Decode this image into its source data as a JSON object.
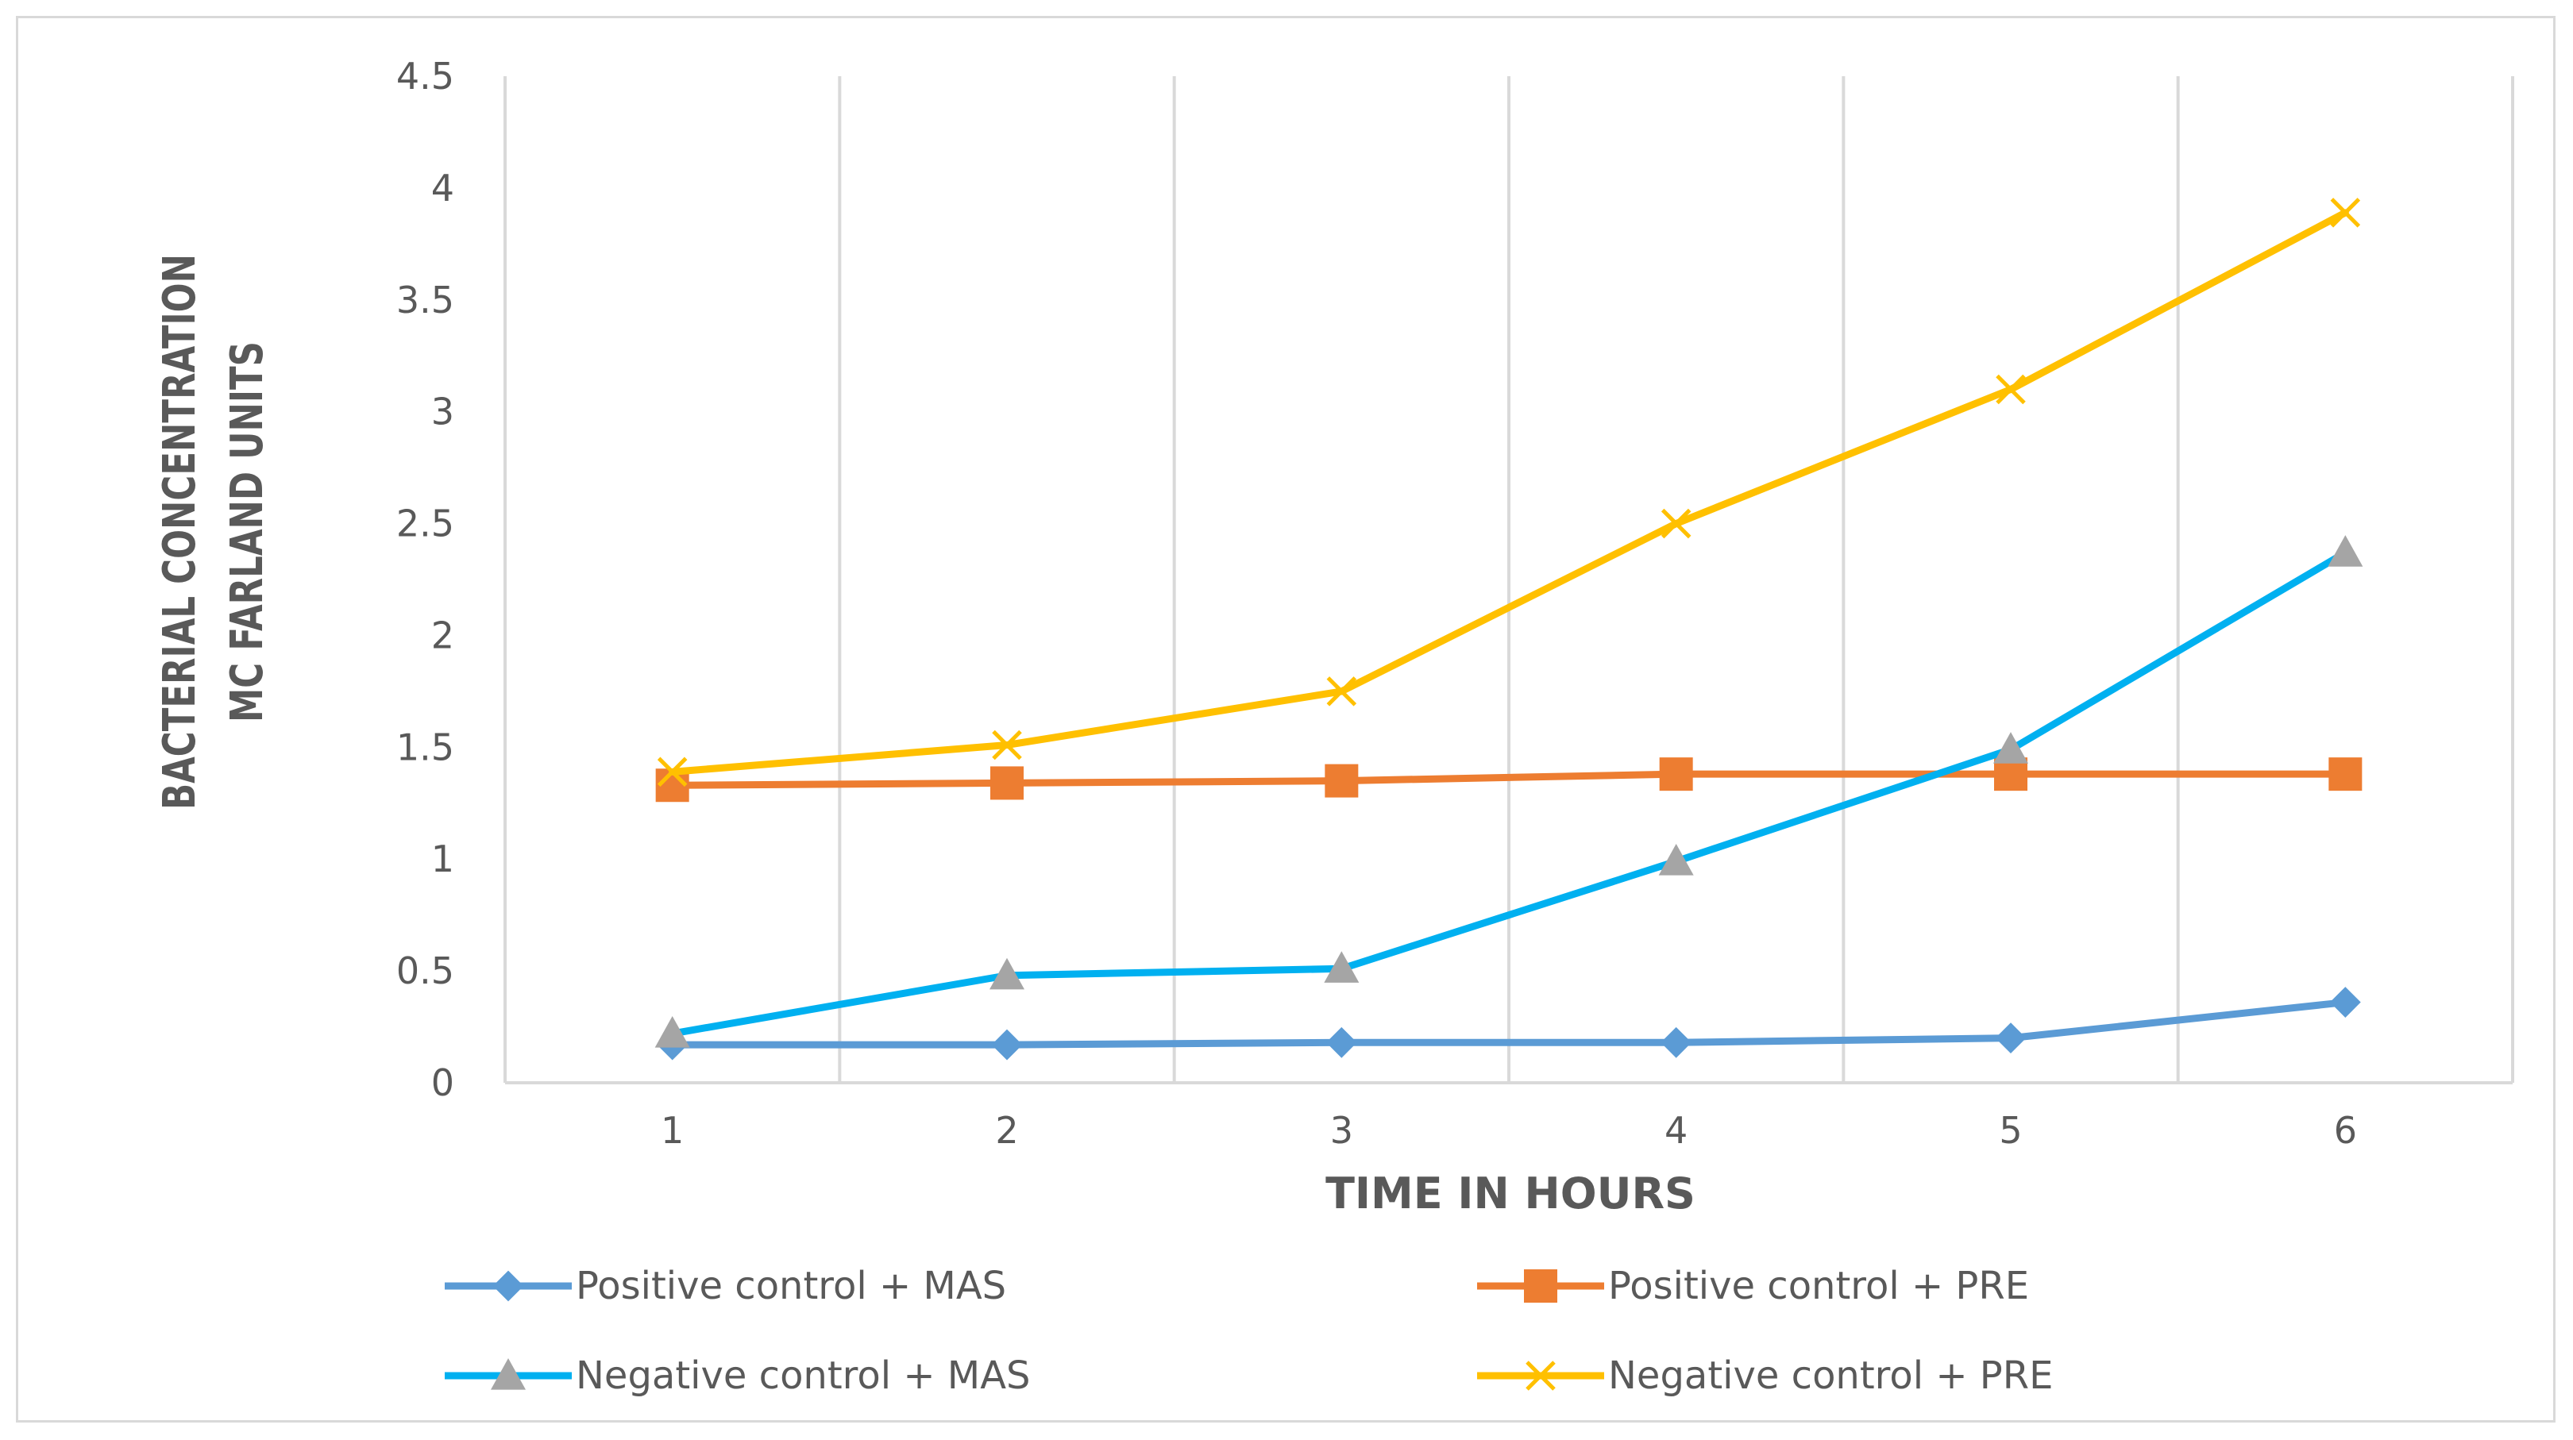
{
  "chart_data": {
    "type": "line",
    "title": "",
    "xlabel": "TIME IN HOURS",
    "ylabel_lines": [
      "BACTERIAL CONCENTRATION",
      "MC FARLAND UNITS"
    ],
    "categories": [
      "1",
      "2",
      "3",
      "4",
      "5",
      "6"
    ],
    "ylim": [
      0,
      4.5
    ],
    "yticks": [
      "0",
      "0.5",
      "1",
      "1.5",
      "2",
      "2.5",
      "3",
      "3.5",
      "4",
      "4.5"
    ],
    "grid": "vertical",
    "legend_position": "bottom",
    "series": [
      {
        "name": "Positive control + MAS",
        "color": "#5b9bd5",
        "marker": "diamond",
        "values": [
          0.17,
          0.17,
          0.18,
          0.18,
          0.2,
          0.36
        ]
      },
      {
        "name": "Positive control + PRE",
        "color": "#ed7d31",
        "marker": "square",
        "values": [
          1.33,
          1.34,
          1.35,
          1.38,
          1.38,
          1.38
        ]
      },
      {
        "name": "Negative control + MAS",
        "color": "#00b0f0",
        "marker": "triangle",
        "values": [
          0.22,
          0.48,
          0.51,
          0.99,
          1.49,
          2.37
        ]
      },
      {
        "name": "Negative control + PRE",
        "color": "#ffc000",
        "marker": "x",
        "values": [
          1.39,
          1.51,
          1.75,
          2.5,
          3.1,
          3.89
        ]
      }
    ]
  }
}
